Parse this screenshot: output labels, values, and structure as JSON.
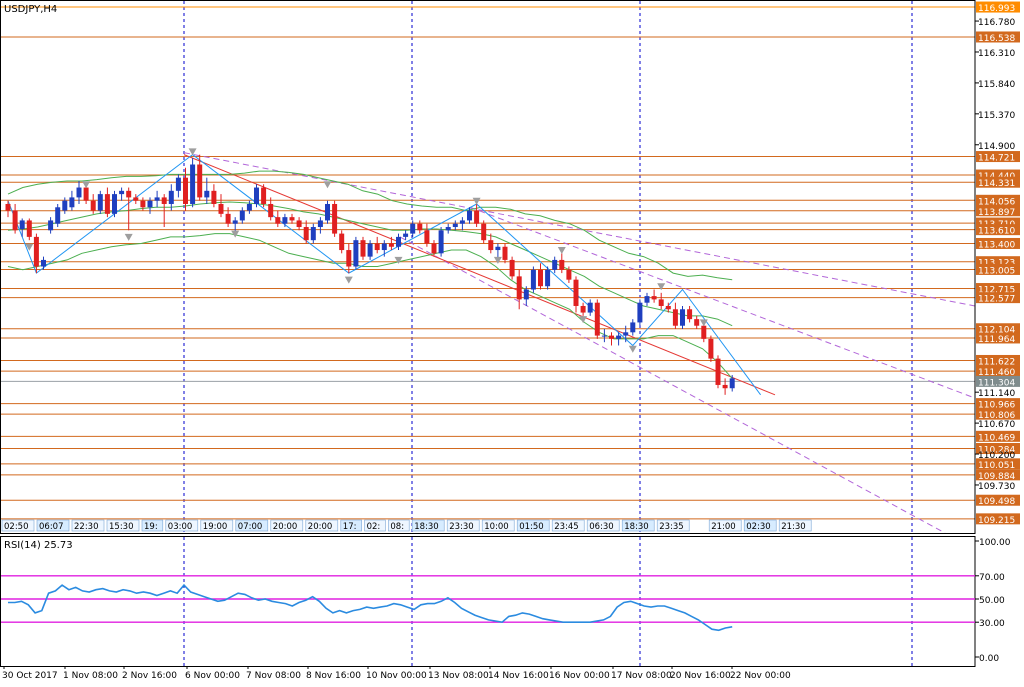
{
  "chart_data": [
    {
      "type": "line",
      "title": "USDJPY,H4",
      "ylim": [
        109.0,
        117.1
      ],
      "current_price": "111.304",
      "axis_ticks": [
        116.78,
        116.31,
        115.84,
        115.37,
        114.9,
        111.14,
        110.67,
        110.2,
        109.73
      ],
      "price_levels": [
        {
          "value": 116.993,
          "label": "116.993",
          "color": "#ff8c00"
        },
        {
          "value": 116.538,
          "label": "116.538",
          "color": "#d2691e"
        },
        {
          "value": 114.721,
          "label": "114.721",
          "color": "#d2691e"
        },
        {
          "value": 114.44,
          "label": "114.440",
          "color": "#d2691e"
        },
        {
          "value": 114.331,
          "label": "114.331",
          "color": "#d2691e"
        },
        {
          "value": 114.056,
          "label": "114.056",
          "color": "#d2691e"
        },
        {
          "value": 113.897,
          "label": "113.897",
          "color": "#d2691e"
        },
        {
          "value": 113.71,
          "label": "113.710",
          "color": "#d2691e"
        },
        {
          "value": 113.61,
          "label": "113.610",
          "color": "#d2691e"
        },
        {
          "value": 113.4,
          "label": "113.400",
          "color": "#d2691e"
        },
        {
          "value": 113.123,
          "label": "113.123",
          "color": "#d2691e"
        },
        {
          "value": 113.005,
          "label": "113.005",
          "color": "#d2691e"
        },
        {
          "value": 112.715,
          "label": "112.715",
          "color": "#d2691e"
        },
        {
          "value": 112.577,
          "label": "112.577",
          "color": "#d2691e"
        },
        {
          "value": 112.104,
          "label": "112.104",
          "color": "#d2691e"
        },
        {
          "value": 111.964,
          "label": "111.964",
          "color": "#d2691e"
        },
        {
          "value": 111.622,
          "label": "111.622",
          "color": "#d2691e"
        },
        {
          "value": 111.46,
          "label": "111.460",
          "color": "#d2691e"
        },
        {
          "value": 110.966,
          "label": "110.966",
          "color": "#d2691e"
        },
        {
          "value": 110.806,
          "label": "110.806",
          "color": "#d2691e"
        },
        {
          "value": 110.469,
          "label": "110.469",
          "color": "#d2691e"
        },
        {
          "value": 110.284,
          "label": "110.284",
          "color": "#d2691e"
        },
        {
          "value": 110.051,
          "label": "110.051",
          "color": "#d2691e"
        },
        {
          "value": 109.884,
          "label": "109.884",
          "color": "#d2691e"
        },
        {
          "value": 109.498,
          "label": "109.498",
          "color": "#d2691e"
        },
        {
          "value": 109.215,
          "label": "109.215",
          "color": "#d2691e"
        }
      ],
      "date_labels": [
        "30 Oct 2017",
        "1 Nov 08:00",
        "2 Nov 16:00",
        "6 Nov 00:00",
        "7 Nov 08:00",
        "8 Nov 16:00",
        "10 Nov 00:00",
        "13 Nov 08:00",
        "14 Nov 16:00",
        "16 Nov 00:00",
        "17 Nov 08:00",
        "20 Nov 16:00",
        "22 Nov 00:00"
      ],
      "time_tags": [
        "02:50",
        "06:07",
        "22:30",
        "15:30",
        "19:",
        "03:00",
        "19:00",
        "07:00",
        "20:00",
        "20:00",
        "17:",
        "02:",
        "08:",
        "18:30",
        "23:30",
        "10:00",
        "01:50",
        "23:45",
        "06:30",
        "18:30",
        "23:35",
        "21:00",
        "02:30",
        "21:30"
      ],
      "candles": [
        {
          "o": 114.0,
          "h": 114.05,
          "l": 113.8,
          "c": 113.9
        },
        {
          "o": 113.9,
          "h": 114.0,
          "l": 113.55,
          "c": 113.6
        },
        {
          "o": 113.62,
          "h": 113.78,
          "l": 113.5,
          "c": 113.75
        },
        {
          "o": 113.75,
          "h": 113.78,
          "l": 113.45,
          "c": 113.5
        },
        {
          "o": 113.5,
          "h": 113.55,
          "l": 112.95,
          "c": 113.05
        },
        {
          "o": 113.05,
          "h": 113.2,
          "l": 113.0,
          "c": 113.15
        },
        {
          "o": 113.6,
          "h": 113.8,
          "l": 113.55,
          "c": 113.75
        },
        {
          "o": 113.7,
          "h": 114.0,
          "l": 113.65,
          "c": 113.95
        },
        {
          "o": 113.9,
          "h": 114.1,
          "l": 113.85,
          "c": 114.05
        },
        {
          "o": 113.95,
          "h": 114.2,
          "l": 113.9,
          "c": 114.1
        },
        {
          "o": 114.1,
          "h": 114.35,
          "l": 114.0,
          "c": 114.25
        },
        {
          "o": 114.25,
          "h": 114.3,
          "l": 114.0,
          "c": 114.05
        },
        {
          "o": 114.05,
          "h": 114.15,
          "l": 113.85,
          "c": 113.9
        },
        {
          "o": 113.9,
          "h": 114.2,
          "l": 113.85,
          "c": 114.15
        },
        {
          "o": 114.15,
          "h": 114.25,
          "l": 113.8,
          "c": 113.85
        },
        {
          "o": 113.85,
          "h": 114.2,
          "l": 113.8,
          "c": 114.15
        },
        {
          "o": 114.15,
          "h": 114.25,
          "l": 114.05,
          "c": 114.2
        },
        {
          "o": 114.2,
          "h": 114.25,
          "l": 113.6,
          "c": 114.1
        },
        {
          "o": 114.1,
          "h": 114.15,
          "l": 114.0,
          "c": 114.05
        },
        {
          "o": 114.05,
          "h": 114.1,
          "l": 113.9,
          "c": 113.95
        },
        {
          "o": 113.95,
          "h": 114.1,
          "l": 113.85,
          "c": 114.05
        },
        {
          "o": 114.05,
          "h": 114.2,
          "l": 113.95,
          "c": 114.1
        },
        {
          "o": 114.1,
          "h": 114.15,
          "l": 113.65,
          "c": 114.0
        },
        {
          "o": 114.0,
          "h": 114.3,
          "l": 113.9,
          "c": 114.2
        },
        {
          "o": 114.2,
          "h": 114.45,
          "l": 114.1,
          "c": 114.4
        },
        {
          "o": 114.4,
          "h": 114.55,
          "l": 113.9,
          "c": 114.0
        },
        {
          "o": 114.0,
          "h": 114.7,
          "l": 113.95,
          "c": 114.6
        },
        {
          "o": 114.6,
          "h": 114.75,
          "l": 114.05,
          "c": 114.1
        },
        {
          "o": 114.1,
          "h": 114.4,
          "l": 114.0,
          "c": 114.2
        },
        {
          "o": 114.2,
          "h": 114.3,
          "l": 113.95,
          "c": 114.0
        },
        {
          "o": 114.0,
          "h": 114.15,
          "l": 113.8,
          "c": 113.85
        },
        {
          "o": 113.85,
          "h": 113.95,
          "l": 113.65,
          "c": 113.7
        },
        {
          "o": 113.7,
          "h": 113.8,
          "l": 113.55,
          "c": 113.75
        },
        {
          "o": 113.75,
          "h": 113.95,
          "l": 113.7,
          "c": 113.9
        },
        {
          "o": 113.9,
          "h": 114.05,
          "l": 113.85,
          "c": 114.0
        },
        {
          "o": 114.0,
          "h": 114.3,
          "l": 113.95,
          "c": 114.25
        },
        {
          "o": 114.25,
          "h": 114.3,
          "l": 113.95,
          "c": 114.0
        },
        {
          "o": 114.0,
          "h": 114.1,
          "l": 113.75,
          "c": 113.8
        },
        {
          "o": 113.8,
          "h": 113.9,
          "l": 113.65,
          "c": 113.7
        },
        {
          "o": 113.7,
          "h": 113.85,
          "l": 113.65,
          "c": 113.8
        },
        {
          "o": 113.8,
          "h": 113.85,
          "l": 113.7,
          "c": 113.75
        },
        {
          "o": 113.75,
          "h": 113.8,
          "l": 113.6,
          "c": 113.65
        },
        {
          "o": 113.65,
          "h": 113.75,
          "l": 113.4,
          "c": 113.45
        },
        {
          "o": 113.45,
          "h": 113.7,
          "l": 113.4,
          "c": 113.65
        },
        {
          "o": 113.65,
          "h": 113.8,
          "l": 113.55,
          "c": 113.75
        },
        {
          "o": 113.75,
          "h": 114.05,
          "l": 113.7,
          "c": 114.0
        },
        {
          "o": 114.0,
          "h": 114.05,
          "l": 113.5,
          "c": 113.55
        },
        {
          "o": 113.55,
          "h": 113.6,
          "l": 113.25,
          "c": 113.3
        },
        {
          "o": 113.3,
          "h": 113.4,
          "l": 112.95,
          "c": 113.05
        },
        {
          "o": 113.05,
          "h": 113.5,
          "l": 113.0,
          "c": 113.45
        },
        {
          "o": 113.45,
          "h": 113.5,
          "l": 113.15,
          "c": 113.2
        },
        {
          "o": 113.2,
          "h": 113.45,
          "l": 113.15,
          "c": 113.4
        },
        {
          "o": 113.4,
          "h": 113.5,
          "l": 113.25,
          "c": 113.3
        },
        {
          "o": 113.3,
          "h": 113.45,
          "l": 113.2,
          "c": 113.4
        },
        {
          "o": 113.4,
          "h": 113.5,
          "l": 113.3,
          "c": 113.35
        },
        {
          "o": 113.35,
          "h": 113.55,
          "l": 113.3,
          "c": 113.5
        },
        {
          "o": 113.5,
          "h": 113.6,
          "l": 113.45,
          "c": 113.55
        },
        {
          "o": 113.55,
          "h": 113.75,
          "l": 113.5,
          "c": 113.7
        },
        {
          "o": 113.7,
          "h": 113.75,
          "l": 113.55,
          "c": 113.6
        },
        {
          "o": 113.6,
          "h": 113.7,
          "l": 113.35,
          "c": 113.4
        },
        {
          "o": 113.4,
          "h": 113.45,
          "l": 113.2,
          "c": 113.25
        },
        {
          "o": 113.25,
          "h": 113.65,
          "l": 113.2,
          "c": 113.6
        },
        {
          "o": 113.6,
          "h": 113.7,
          "l": 113.55,
          "c": 113.65
        },
        {
          "o": 113.65,
          "h": 113.75,
          "l": 113.6,
          "c": 113.7
        },
        {
          "o": 113.7,
          "h": 113.8,
          "l": 113.6,
          "c": 113.75
        },
        {
          "o": 113.75,
          "h": 113.95,
          "l": 113.7,
          "c": 113.9
        },
        {
          "o": 113.9,
          "h": 114.0,
          "l": 113.65,
          "c": 113.7
        },
        {
          "o": 113.7,
          "h": 113.75,
          "l": 113.4,
          "c": 113.45
        },
        {
          "o": 113.45,
          "h": 113.55,
          "l": 113.25,
          "c": 113.3
        },
        {
          "o": 113.3,
          "h": 113.4,
          "l": 113.15,
          "c": 113.35
        },
        {
          "o": 113.35,
          "h": 113.4,
          "l": 113.1,
          "c": 113.15
        },
        {
          "o": 113.15,
          "h": 113.2,
          "l": 112.85,
          "c": 112.9
        },
        {
          "o": 112.9,
          "h": 113.0,
          "l": 112.4,
          "c": 112.55
        },
        {
          "o": 112.55,
          "h": 112.75,
          "l": 112.45,
          "c": 112.7
        },
        {
          "o": 112.7,
          "h": 113.05,
          "l": 112.65,
          "c": 113.0
        },
        {
          "o": 113.0,
          "h": 113.1,
          "l": 112.7,
          "c": 112.75
        },
        {
          "o": 112.75,
          "h": 113.05,
          "l": 112.7,
          "c": 113.0
        },
        {
          "o": 113.0,
          "h": 113.2,
          "l": 112.95,
          "c": 113.15
        },
        {
          "o": 113.15,
          "h": 113.25,
          "l": 112.95,
          "c": 113.0
        },
        {
          "o": 113.0,
          "h": 113.05,
          "l": 112.8,
          "c": 112.85
        },
        {
          "o": 112.85,
          "h": 112.9,
          "l": 112.35,
          "c": 112.45
        },
        {
          "o": 112.45,
          "h": 112.5,
          "l": 112.3,
          "c": 112.35
        },
        {
          "o": 112.35,
          "h": 112.55,
          "l": 112.3,
          "c": 112.5
        },
        {
          "o": 112.5,
          "h": 112.55,
          "l": 111.95,
          "c": 112.0
        },
        {
          "o": 112.0,
          "h": 112.1,
          "l": 111.9,
          "c": 112.0
        },
        {
          "o": 112.0,
          "h": 112.05,
          "l": 111.85,
          "c": 111.95
        },
        {
          "o": 111.95,
          "h": 112.05,
          "l": 111.85,
          "c": 112.0
        },
        {
          "o": 112.0,
          "h": 112.15,
          "l": 111.9,
          "c": 112.05
        },
        {
          "o": 112.05,
          "h": 112.25,
          "l": 112.0,
          "c": 112.2
        },
        {
          "o": 112.2,
          "h": 112.55,
          "l": 112.15,
          "c": 112.5
        },
        {
          "o": 112.5,
          "h": 112.65,
          "l": 112.45,
          "c": 112.6
        },
        {
          "o": 112.6,
          "h": 112.7,
          "l": 112.5,
          "c": 112.55
        },
        {
          "o": 112.55,
          "h": 112.65,
          "l": 112.4,
          "c": 112.45
        },
        {
          "o": 112.45,
          "h": 112.5,
          "l": 112.35,
          "c": 112.4
        },
        {
          "o": 112.4,
          "h": 112.5,
          "l": 112.1,
          "c": 112.15
        },
        {
          "o": 112.15,
          "h": 112.45,
          "l": 112.1,
          "c": 112.4
        },
        {
          "o": 112.4,
          "h": 112.45,
          "l": 112.2,
          "c": 112.25
        },
        {
          "o": 112.25,
          "h": 112.3,
          "l": 112.1,
          "c": 112.15
        },
        {
          "o": 112.15,
          "h": 112.2,
          "l": 111.9,
          "c": 111.95
        },
        {
          "o": 111.95,
          "h": 112.0,
          "l": 111.6,
          "c": 111.65
        },
        {
          "o": 111.65,
          "h": 111.7,
          "l": 111.2,
          "c": 111.25
        },
        {
          "o": 111.25,
          "h": 111.35,
          "l": 111.1,
          "c": 111.2
        },
        {
          "o": 111.2,
          "h": 111.4,
          "l": 111.15,
          "c": 111.35
        }
      ],
      "bollinger": {
        "upper": [
          114.15,
          114.25,
          114.3,
          114.33,
          114.35,
          114.35,
          114.37,
          114.4,
          114.42,
          114.42,
          114.43,
          114.45,
          114.45,
          114.45,
          114.45,
          114.45,
          114.47,
          114.5,
          114.5,
          114.48,
          114.45,
          114.4,
          114.35,
          114.3,
          114.2,
          114.15,
          114.05,
          114.0,
          113.97,
          113.95,
          113.95,
          113.9,
          113.95,
          113.95,
          113.92,
          113.85,
          113.82,
          113.75,
          113.7,
          113.6,
          113.45,
          113.35,
          113.25,
          113.2,
          113.1,
          112.95,
          112.9,
          112.92,
          112.88,
          112.85
        ],
        "middle": [
          113.6,
          113.62,
          113.65,
          113.7,
          113.75,
          113.8,
          113.85,
          113.88,
          113.9,
          113.93,
          113.95,
          113.95,
          113.97,
          114.0,
          114.02,
          114.03,
          114.02,
          114.0,
          113.97,
          113.93,
          113.88,
          113.85,
          113.8,
          113.75,
          113.7,
          113.65,
          113.6,
          113.6,
          113.62,
          113.62,
          113.6,
          113.58,
          113.55,
          113.5,
          113.4,
          113.3,
          113.2,
          113.1,
          113.0,
          112.9,
          112.75,
          112.65,
          112.55,
          112.45,
          112.4,
          112.35,
          112.3,
          112.3,
          112.25,
          112.15
        ],
        "lower": [
          113.05,
          113.0,
          113.05,
          113.1,
          113.15,
          113.25,
          113.3,
          113.35,
          113.38,
          113.4,
          113.45,
          113.5,
          113.5,
          113.52,
          113.55,
          113.55,
          113.5,
          113.45,
          113.35,
          113.25,
          113.2,
          113.15,
          113.1,
          113.1,
          113.05,
          113.05,
          113.1,
          113.15,
          113.2,
          113.25,
          113.3,
          113.3,
          113.2,
          113.05,
          112.85,
          112.7,
          112.6,
          112.5,
          112.4,
          112.2,
          112.05,
          111.95,
          111.95,
          111.95,
          112.0,
          112.0,
          111.9,
          111.8,
          111.6,
          111.35
        ]
      },
      "rsi": [
        47,
        47,
        48,
        45,
        38,
        40,
        55,
        57,
        62,
        58,
        60,
        57,
        56,
        58,
        59,
        57,
        56,
        58,
        57,
        55,
        56,
        55,
        53,
        55,
        57,
        55,
        62,
        56,
        54,
        52,
        50,
        48,
        49,
        52,
        55,
        54,
        51,
        49,
        50,
        48,
        47,
        46,
        44,
        47,
        49,
        52,
        48,
        42,
        38,
        40,
        38,
        40,
        41,
        43,
        42,
        43,
        44,
        46,
        45,
        43,
        41,
        45,
        46,
        46,
        48,
        51,
        47,
        42,
        39,
        36,
        34,
        32,
        31,
        30,
        35,
        36,
        38,
        37,
        35,
        33,
        32,
        31,
        30,
        30,
        30,
        30,
        30,
        31,
        32,
        35,
        43,
        47,
        48,
        46,
        44,
        43,
        44,
        44,
        42,
        40,
        38,
        35,
        32,
        28,
        24,
        23,
        25,
        26
      ]
    },
    {
      "type": "line",
      "title": "RSI(14) 25.73",
      "ylim": [
        0,
        100
      ],
      "axis_ticks": [
        "100.00",
        "70.00",
        "50.00",
        "30.00",
        "0.00"
      ],
      "levels": [
        70,
        50,
        30
      ]
    }
  ]
}
